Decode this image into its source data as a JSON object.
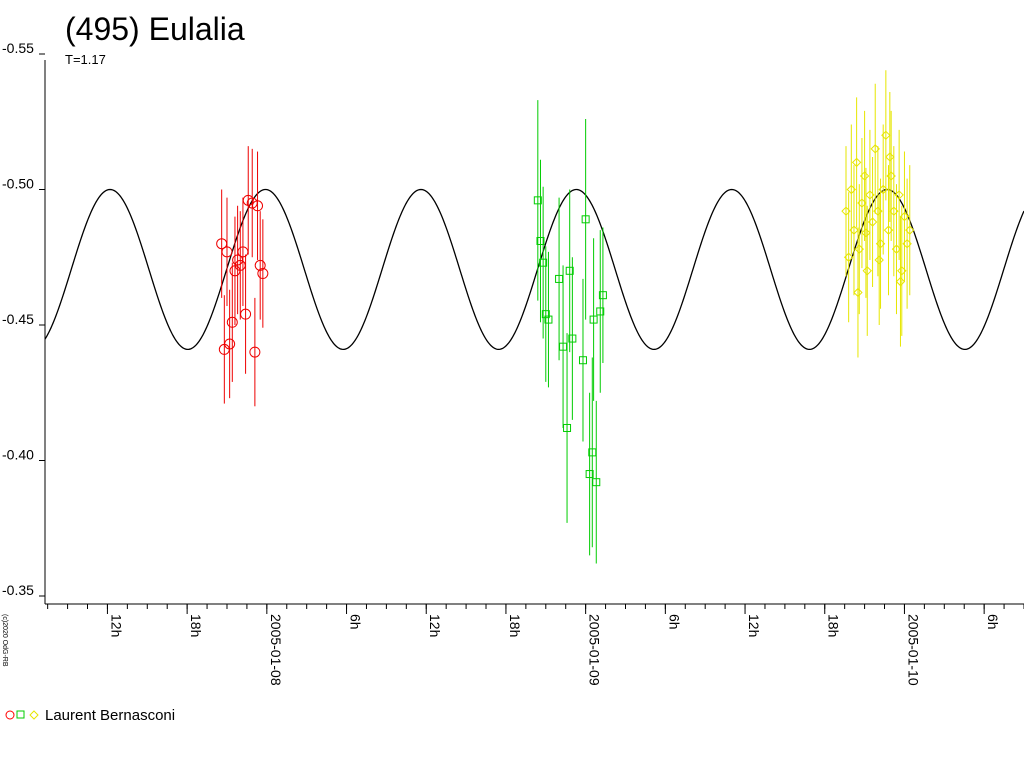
{
  "chart_data": {
    "type": "scatter",
    "title": "(495) Eulalia",
    "subtitle": "T=1.17",
    "copyright": "(c)2020 OdG-RB",
    "y_axis": {
      "ticks": [
        -0.55,
        -0.5,
        -0.45,
        -0.4,
        -0.35
      ],
      "tick_labels": [
        "-0.55",
        "-0.50",
        "-0.45",
        "-0.40",
        "-0.35"
      ],
      "reversed": true,
      "ylim": [
        -0.55,
        -0.35
      ]
    },
    "x_axis": {
      "unit": "hours",
      "range_hours": [
        7.3,
        81.0
      ],
      "tick_labels": [
        {
          "hour": 12,
          "label": "12h"
        },
        {
          "hour": 18,
          "label": "18h"
        },
        {
          "hour": 24,
          "label": "2005-01-08"
        },
        {
          "hour": 30,
          "label": "6h"
        },
        {
          "hour": 36,
          "label": "12h"
        },
        {
          "hour": 42,
          "label": "18h"
        },
        {
          "hour": 48,
          "label": "2005-01-09"
        },
        {
          "hour": 54,
          "label": "6h"
        },
        {
          "hour": 60,
          "label": "12h"
        },
        {
          "hour": 66,
          "label": "18h"
        },
        {
          "hour": 72,
          "label": "2005-01-10"
        },
        {
          "hour": 78,
          "label": "6h"
        }
      ],
      "minor_tick_step_hours": 1.5
    },
    "model_curve": {
      "period_hours": 11.7,
      "amplitude": 0.0295,
      "mean": -0.4705,
      "phase_hour": 23.9,
      "color": "#000000"
    },
    "legend": {
      "text": "Laurent Bernasconi",
      "markers": [
        "circle",
        "square",
        "diamond"
      ],
      "colors": [
        "#ff0000",
        "#00cc00",
        "#e6e600"
      ]
    },
    "series": [
      {
        "name": "Laurent Bernasconi",
        "marker": "circle",
        "color": "#ee0000",
        "points": [
          [
            20.6,
            -0.48,
            0.02
          ],
          [
            20.8,
            -0.441,
            0.02
          ],
          [
            21.0,
            -0.477,
            0.02
          ],
          [
            21.2,
            -0.443,
            0.02
          ],
          [
            21.4,
            -0.451,
            0.022
          ],
          [
            21.6,
            -0.47,
            0.02
          ],
          [
            21.8,
            -0.474,
            0.02
          ],
          [
            22.0,
            -0.472,
            0.02
          ],
          [
            22.2,
            -0.477,
            0.02
          ],
          [
            22.4,
            -0.454,
            0.022
          ],
          [
            22.6,
            -0.496,
            0.02
          ],
          [
            22.9,
            -0.495,
            0.02
          ],
          [
            23.1,
            -0.44,
            0.02
          ],
          [
            23.3,
            -0.494,
            0.02
          ],
          [
            23.5,
            -0.472,
            0.02
          ],
          [
            23.7,
            -0.469,
            0.02
          ]
        ]
      },
      {
        "name": "Laurent Bernasconi",
        "marker": "square",
        "color": "#00cc00",
        "points": [
          [
            44.4,
            -0.496,
            0.037
          ],
          [
            44.6,
            -0.481,
            0.03
          ],
          [
            44.8,
            -0.473,
            0.028
          ],
          [
            45.0,
            -0.454,
            0.025
          ],
          [
            45.2,
            -0.452,
            0.025
          ],
          [
            46.0,
            -0.467,
            0.03
          ],
          [
            46.3,
            -0.442,
            0.03
          ],
          [
            46.6,
            -0.412,
            0.035
          ],
          [
            46.8,
            -0.47,
            0.03
          ],
          [
            47.0,
            -0.445,
            0.03
          ],
          [
            47.8,
            -0.437,
            0.03
          ],
          [
            48.0,
            -0.489,
            0.037
          ],
          [
            48.3,
            -0.395,
            0.03
          ],
          [
            48.5,
            -0.403,
            0.035
          ],
          [
            48.6,
            -0.452,
            0.03
          ],
          [
            48.8,
            -0.392,
            0.03
          ],
          [
            49.1,
            -0.455,
            0.03
          ],
          [
            49.3,
            -0.461,
            0.025
          ]
        ]
      },
      {
        "name": "Laurent Bernasconi",
        "marker": "diamond",
        "color": "#e6e600",
        "points": [
          [
            67.6,
            -0.492,
            0.024
          ],
          [
            67.8,
            -0.475,
            0.024
          ],
          [
            68.0,
            -0.5,
            0.024
          ],
          [
            68.2,
            -0.485,
            0.024
          ],
          [
            68.4,
            -0.51,
            0.024
          ],
          [
            68.6,
            -0.478,
            0.024
          ],
          [
            68.8,
            -0.495,
            0.024
          ],
          [
            69.0,
            -0.505,
            0.024
          ],
          [
            69.2,
            -0.47,
            0.024
          ],
          [
            69.4,
            -0.498,
            0.024
          ],
          [
            69.6,
            -0.488,
            0.024
          ],
          [
            69.8,
            -0.515,
            0.024
          ],
          [
            70.0,
            -0.492,
            0.024
          ],
          [
            70.2,
            -0.48,
            0.024
          ],
          [
            70.4,
            -0.5,
            0.024
          ],
          [
            70.6,
            -0.52,
            0.024
          ],
          [
            70.8,
            -0.485,
            0.024
          ],
          [
            71.0,
            -0.505,
            0.024
          ],
          [
            71.2,
            -0.492,
            0.024
          ],
          [
            71.4,
            -0.478,
            0.024
          ],
          [
            71.6,
            -0.498,
            0.024
          ],
          [
            71.8,
            -0.47,
            0.024
          ],
          [
            72.0,
            -0.49,
            0.024
          ],
          [
            72.2,
            -0.48,
            0.024
          ],
          [
            72.4,
            -0.485,
            0.024
          ],
          [
            68.5,
            -0.462,
            0.024
          ],
          [
            69.1,
            -0.484,
            0.024
          ],
          [
            70.1,
            -0.474,
            0.024
          ],
          [
            70.9,
            -0.512,
            0.024
          ],
          [
            71.7,
            -0.466,
            0.024
          ]
        ]
      }
    ]
  }
}
